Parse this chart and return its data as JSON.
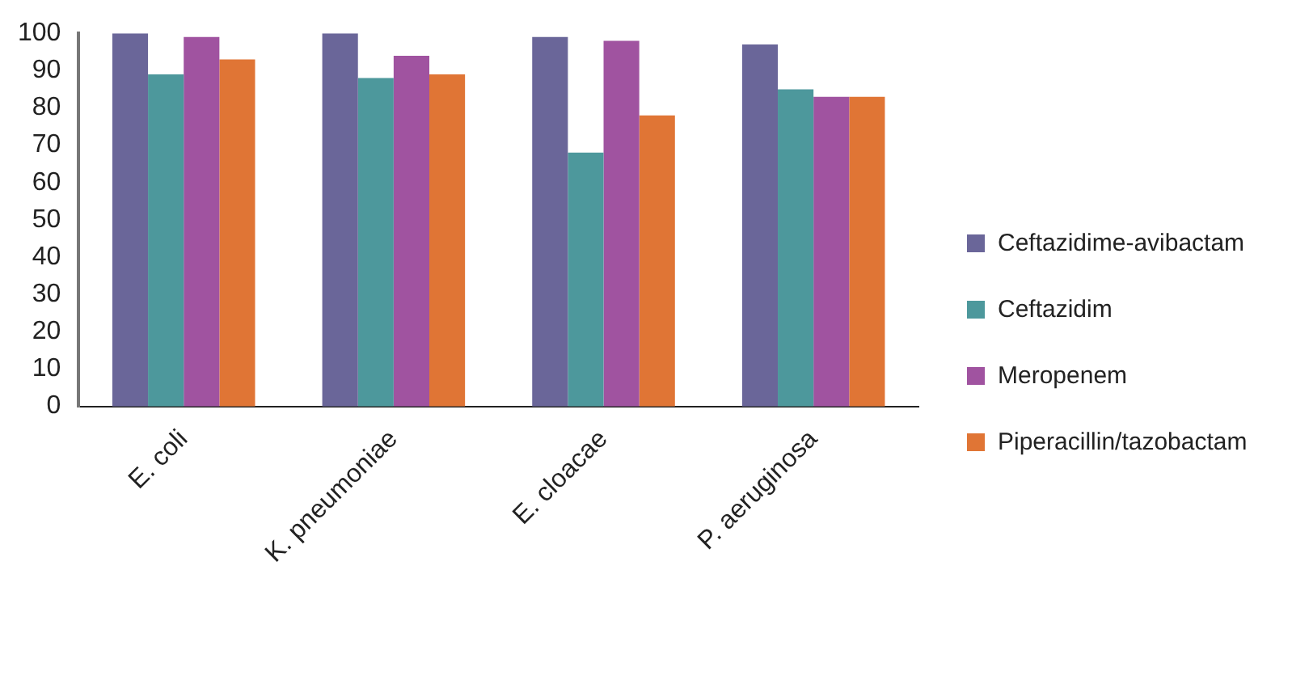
{
  "chart_data": {
    "type": "bar",
    "categories": [
      "E. coli",
      "K. pneumoniae",
      "E. cloacae",
      "P. aeruginosa"
    ],
    "series": [
      {
        "name": "Ceftazidime-avibactam",
        "color": "#6a6699",
        "values": [
          100,
          100,
          99,
          97
        ]
      },
      {
        "name": "Ceftazidim",
        "color": "#4d989c",
        "values": [
          89,
          88,
          68,
          85
        ]
      },
      {
        "name": "Meropenem",
        "color": "#a053a0",
        "values": [
          99,
          94,
          98,
          83
        ]
      },
      {
        "name": "Piperacillin/tazobactam",
        "color": "#e07535",
        "values": [
          93,
          89,
          78,
          83
        ]
      }
    ],
    "ylim": [
      0,
      100
    ],
    "yticks": [
      0,
      10,
      20,
      30,
      40,
      50,
      60,
      70,
      80,
      90,
      100
    ],
    "grid": false,
    "legend": "right"
  }
}
